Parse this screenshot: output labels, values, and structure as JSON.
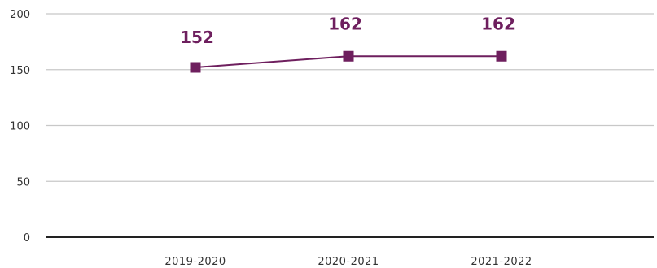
{
  "chart_data": {
    "type": "line",
    "categories": [
      "2019-2020",
      "2020-2021",
      "2021-2022"
    ],
    "series": [
      {
        "values": [
          152,
          162,
          162
        ]
      }
    ],
    "data_labels": [
      "152",
      "162",
      "162"
    ],
    "y_ticks": [
      "0",
      "50",
      "100",
      "150",
      "200"
    ],
    "ylim": [
      0,
      200
    ],
    "grid": true,
    "legend": "none",
    "colors": {
      "series": "#6e1f5e",
      "grid": "#c8c8c8",
      "axis": "#222222",
      "text": "#333333"
    },
    "title": "",
    "xlabel": "",
    "ylabel": ""
  }
}
